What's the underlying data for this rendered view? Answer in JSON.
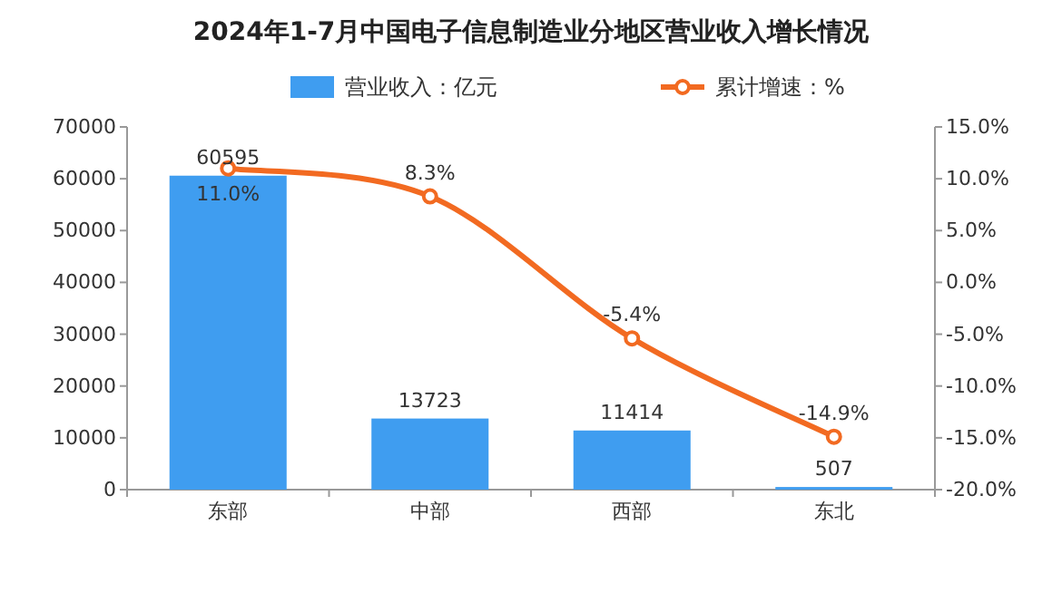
{
  "chart_data": {
    "type": "bar",
    "title": "2024年1-7月中国电子信息制造业分地区营业收入增长情况",
    "categories": [
      "东部",
      "中部",
      "西部",
      "东北"
    ],
    "series": [
      {
        "name": "营业收入：亿元",
        "color": "#3f9df0",
        "values": [
          60595,
          13723,
          11414,
          507
        ],
        "value_labels": [
          "60595",
          "13723",
          "11414",
          "507"
        ]
      },
      {
        "name": "累计增速：%",
        "type": "line",
        "axis": "y2",
        "color": "#f26a21",
        "marker": "circle",
        "values": [
          11.0,
          8.3,
          -5.4,
          -14.9
        ],
        "value_labels": [
          "11.0%",
          "8.3%",
          "-5.4%",
          "-14.9%"
        ]
      }
    ],
    "ylim": [
      0,
      70000
    ],
    "yticks": [
      0,
      10000,
      20000,
      30000,
      40000,
      50000,
      60000,
      70000
    ],
    "y2lim": [
      -20,
      15
    ],
    "y2ticks": [
      {
        "value": -20,
        "label": "-20.0%"
      },
      {
        "value": -15,
        "label": "-15.0%"
      },
      {
        "value": -10,
        "label": "-10.0%"
      },
      {
        "value": -5,
        "label": "-5.0%"
      },
      {
        "value": 0,
        "label": "0.0%"
      },
      {
        "value": 5,
        "label": "5.0%"
      },
      {
        "value": 10,
        "label": "10.0%"
      },
      {
        "value": 15,
        "label": "15.0%"
      }
    ],
    "legend": "top"
  }
}
